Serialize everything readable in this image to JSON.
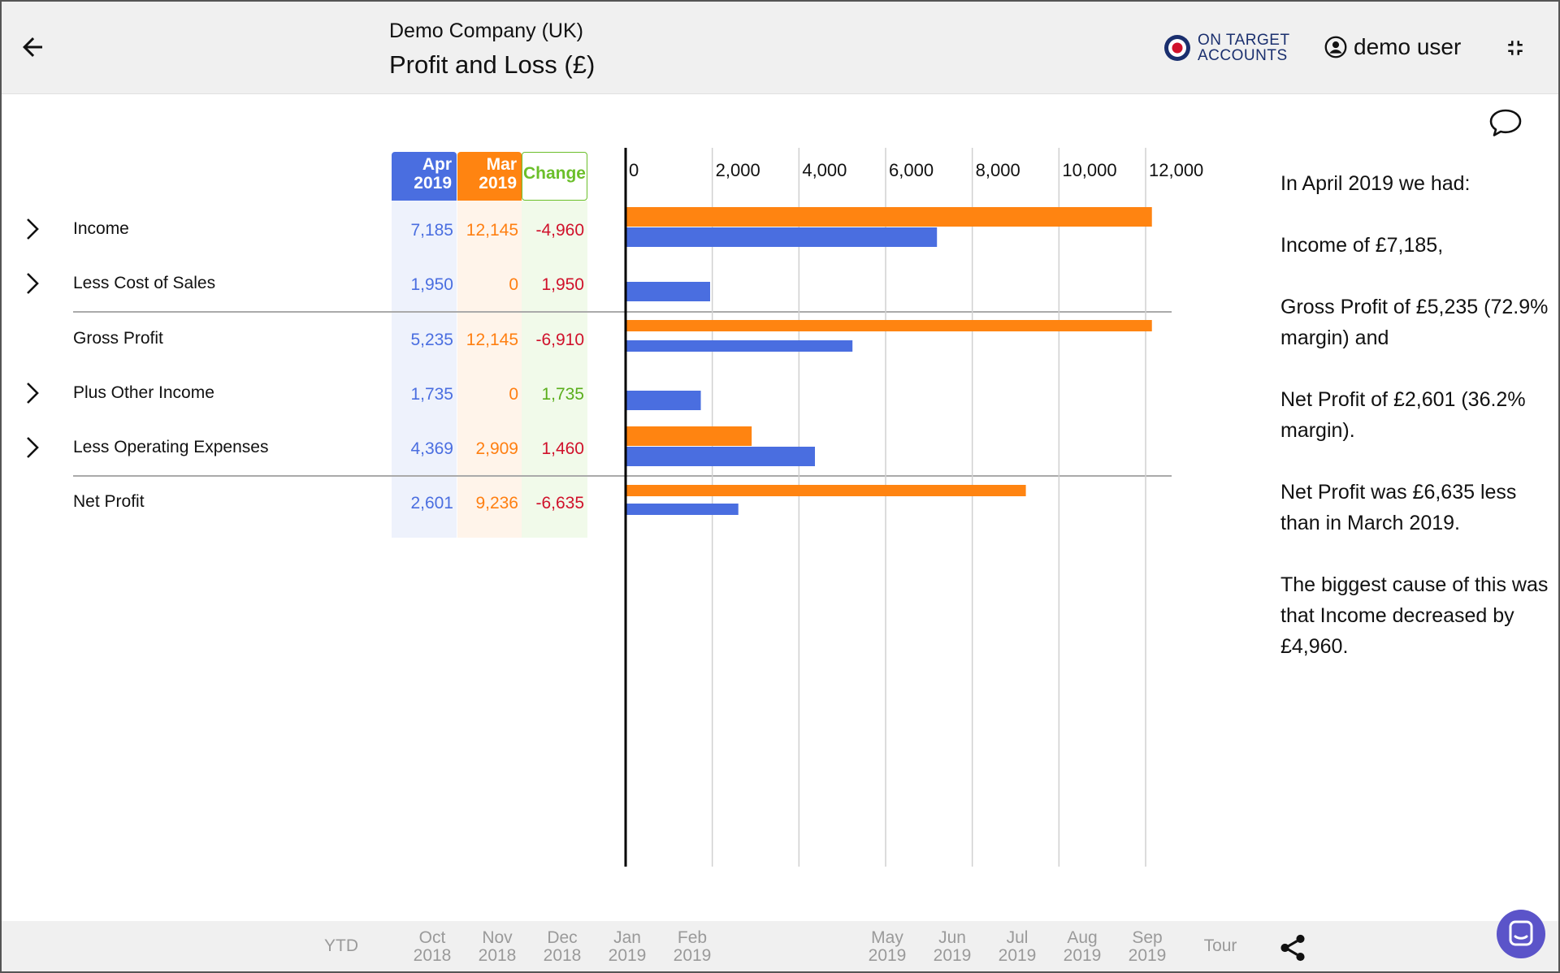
{
  "header": {
    "company": "Demo Company (UK)",
    "title": "Profit and Loss (£)",
    "brand_line1": "ON TARGET",
    "brand_line2": "ACCOUNTS",
    "user": "demo user"
  },
  "table": {
    "columns": {
      "apr_month": "Apr",
      "apr_year": "2019",
      "mar_month": "Mar",
      "mar_year": "2019",
      "change": "Change"
    },
    "rows": [
      {
        "label": "Income",
        "apr": "7,185",
        "mar": "12,145",
        "change": "-4,960",
        "expandable": true
      },
      {
        "label": "Less Cost of Sales",
        "apr": "1,950",
        "mar": "0",
        "change": "1,950",
        "expandable": true
      },
      {
        "label": "Gross Profit",
        "apr": "5,235",
        "mar": "12,145",
        "change": "-6,910",
        "expandable": false
      },
      {
        "label": "Plus Other Income",
        "apr": "1,735",
        "mar": "0",
        "change": "1,735",
        "expandable": true
      },
      {
        "label": "Less Operating Expenses",
        "apr": "4,369",
        "mar": "2,909",
        "change": "1,460",
        "expandable": true
      },
      {
        "label": "Net Profit",
        "apr": "2,601",
        "mar": "9,236",
        "change": "-6,635",
        "expandable": false
      }
    ]
  },
  "chart_data": {
    "type": "bar",
    "orientation": "horizontal",
    "categories": [
      "Income",
      "Less Cost of Sales",
      "Gross Profit",
      "Plus Other Income",
      "Less Operating Expenses",
      "Net Profit"
    ],
    "series": [
      {
        "name": "Mar 2019",
        "color": "#ff8411",
        "values": [
          12145,
          0,
          12145,
          0,
          2909,
          9236
        ]
      },
      {
        "name": "Apr 2019",
        "color": "#4a6ee0",
        "values": [
          7185,
          1950,
          5235,
          1735,
          4369,
          2601
        ]
      }
    ],
    "xlim": [
      0,
      12000
    ],
    "ticks": [
      "0",
      "2,000",
      "4,000",
      "6,000",
      "8,000",
      "10,000",
      "12,000"
    ],
    "grid": true
  },
  "narrative": {
    "p1": "In April 2019 we had:",
    "p2": "Income of £7,185,",
    "p3": "Gross Profit of £5,235 (72.9% margin) and",
    "p4": "Net Profit of £2,601 (36.2% margin).",
    "p5": "Net Profit was £6,635 less than in March 2019.",
    "p6": "The biggest cause of this was that Income decreased by £4,960."
  },
  "timeline": [
    {
      "top": "YTD",
      "bottom": ""
    },
    {
      "top": "Oct",
      "bottom": "2018"
    },
    {
      "top": "Nov",
      "bottom": "2018"
    },
    {
      "top": "Dec",
      "bottom": "2018"
    },
    {
      "top": "Jan",
      "bottom": "2019"
    },
    {
      "top": "Feb",
      "bottom": "2019"
    },
    {
      "top": "May",
      "bottom": "2019"
    },
    {
      "top": "Jun",
      "bottom": "2019"
    },
    {
      "top": "Jul",
      "bottom": "2019"
    },
    {
      "top": "Aug",
      "bottom": "2019"
    },
    {
      "top": "Sep",
      "bottom": "2019"
    },
    {
      "top": "Tour",
      "bottom": ""
    }
  ],
  "colors": {
    "apr": "#4a6ee0",
    "mar": "#ff8411",
    "change": "#6bbf2a",
    "negative": "#d0112b"
  }
}
